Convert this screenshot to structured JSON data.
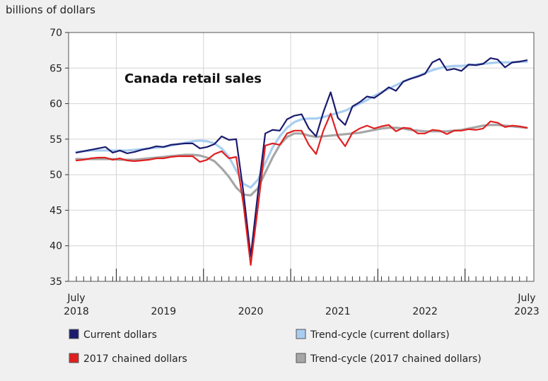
{
  "chart_data": {
    "type": "line",
    "title": "Canada retail sales",
    "ylabel": "billions of dollars",
    "xlabel": "",
    "ylim": [
      35,
      70
    ],
    "yticks": [
      "35",
      "40",
      "45",
      "50",
      "55",
      "60",
      "65",
      "70"
    ],
    "x_start": "2018-07",
    "x_end": "2023-07",
    "x_labels": [
      {
        "label": "July\n2018",
        "top": "July",
        "bottom": "2018"
      },
      {
        "label": "2019",
        "top": "",
        "bottom": "2019"
      },
      {
        "label": "2020",
        "top": "",
        "bottom": "2020"
      },
      {
        "label": "2021",
        "top": "",
        "bottom": "2021"
      },
      {
        "label": "2022",
        "top": "",
        "bottom": "2022"
      },
      {
        "label": "July\n2023",
        "top": "July",
        "bottom": "2023"
      }
    ],
    "grid": true,
    "legend_placement": "bottom",
    "series": [
      {
        "name": "Current dollars",
        "color": "#1a1a6e",
        "values": [
          53.1,
          53.3,
          53.5,
          53.7,
          53.9,
          53.1,
          53.4,
          53.0,
          53.2,
          53.5,
          53.7,
          54.0,
          53.9,
          54.2,
          54.3,
          54.4,
          54.4,
          53.7,
          53.9,
          54.3,
          55.4,
          54.9,
          55.0,
          47.5,
          38.5,
          47.5,
          55.8,
          56.3,
          56.2,
          57.8,
          58.3,
          58.5,
          56.5,
          55.4,
          58.8,
          61.6,
          58.0,
          57.0,
          59.6,
          60.2,
          61.0,
          60.8,
          61.5,
          62.3,
          61.8,
          63.1,
          63.5,
          63.8,
          64.2,
          65.8,
          66.3,
          64.7,
          64.9,
          64.6,
          65.5,
          65.4,
          65.6,
          66.4,
          66.2,
          65.1,
          65.8,
          65.9,
          66.1
        ]
      },
      {
        "name": "Trend-cycle (current dollars)",
        "color": "#a8cdf0",
        "values": [
          53.2,
          53.3,
          53.4,
          53.4,
          53.4,
          53.4,
          53.4,
          53.4,
          53.5,
          53.6,
          53.7,
          53.8,
          53.9,
          54.1,
          54.3,
          54.5,
          54.7,
          54.8,
          54.7,
          54.4,
          53.7,
          52.5,
          50.6,
          48.7,
          48.2,
          49.3,
          51.6,
          53.8,
          55.4,
          56.6,
          57.4,
          57.8,
          57.9,
          57.9,
          58.1,
          58.4,
          58.7,
          59.0,
          59.5,
          60.0,
          60.5,
          61.1,
          61.6,
          62.1,
          62.6,
          63.1,
          63.5,
          63.9,
          64.3,
          64.7,
          65.0,
          65.2,
          65.3,
          65.3,
          65.4,
          65.5,
          65.6,
          65.7,
          65.8,
          65.8,
          65.8,
          65.9,
          65.9
        ]
      },
      {
        "name": "2017 chained dollars",
        "color": "#e01f1f",
        "values": [
          52.0,
          52.1,
          52.3,
          52.4,
          52.4,
          52.1,
          52.3,
          52.0,
          51.9,
          52.0,
          52.1,
          52.3,
          52.3,
          52.5,
          52.6,
          52.6,
          52.6,
          51.8,
          52.1,
          52.9,
          53.3,
          52.3,
          52.5,
          45.8,
          37.3,
          45.5,
          54.1,
          54.4,
          54.2,
          55.8,
          56.2,
          56.2,
          54.2,
          52.9,
          56.2,
          58.6,
          55.4,
          54.0,
          55.9,
          56.5,
          56.9,
          56.5,
          56.8,
          57.0,
          56.1,
          56.6,
          56.5,
          55.8,
          55.8,
          56.3,
          56.2,
          55.7,
          56.2,
          56.2,
          56.4,
          56.3,
          56.5,
          57.5,
          57.3,
          56.7,
          56.9,
          56.8,
          56.6
        ]
      },
      {
        "name": "Trend-cycle (2017 chained dollars)",
        "color": "#a6a6a6",
        "values": [
          52.2,
          52.2,
          52.2,
          52.2,
          52.2,
          52.2,
          52.1,
          52.1,
          52.1,
          52.2,
          52.3,
          52.4,
          52.5,
          52.6,
          52.7,
          52.8,
          52.8,
          52.7,
          52.4,
          51.9,
          50.9,
          49.7,
          48.2,
          47.2,
          47.1,
          48.1,
          50.3,
          52.4,
          54.2,
          55.3,
          55.8,
          55.8,
          55.5,
          55.3,
          55.4,
          55.5,
          55.6,
          55.7,
          55.8,
          55.9,
          56.1,
          56.3,
          56.5,
          56.6,
          56.6,
          56.5,
          56.3,
          56.2,
          56.1,
          56.1,
          56.1,
          56.1,
          56.2,
          56.3,
          56.5,
          56.7,
          56.9,
          57.0,
          57.0,
          56.9,
          56.8,
          56.7,
          56.6
        ]
      }
    ]
  },
  "legend": {
    "items": [
      {
        "label": "Current dollars",
        "color": "#1a1a6e"
      },
      {
        "label": "Trend-cycle (current dollars)",
        "color": "#a8cdf0"
      },
      {
        "label": "2017 chained dollars",
        "color": "#e01f1f"
      },
      {
        "label": "Trend-cycle (2017 chained dollars)",
        "color": "#a6a6a6"
      }
    ]
  }
}
